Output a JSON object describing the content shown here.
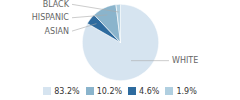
{
  "chart_data": {
    "type": "pie",
    "categories": [
      "WHITE",
      "ASIAN",
      "HISPANIC",
      "BLACK"
    ],
    "values": [
      83.2,
      4.6,
      10.2,
      1.9
    ],
    "colors": [
      "#d6e4f0",
      "#2e6b9e",
      "#8ab4cc",
      "#b0cfe0"
    ],
    "legend": "bottom",
    "legend_entries": [
      {
        "name": "83.2%",
        "color": "#d6e4f0"
      },
      {
        "name": "10.2%",
        "color": "#8ab4cc"
      },
      {
        "name": "4.6%",
        "color": "#2e6b9e"
      },
      {
        "name": "1.9%",
        "color": "#b0cfe0"
      }
    ]
  }
}
